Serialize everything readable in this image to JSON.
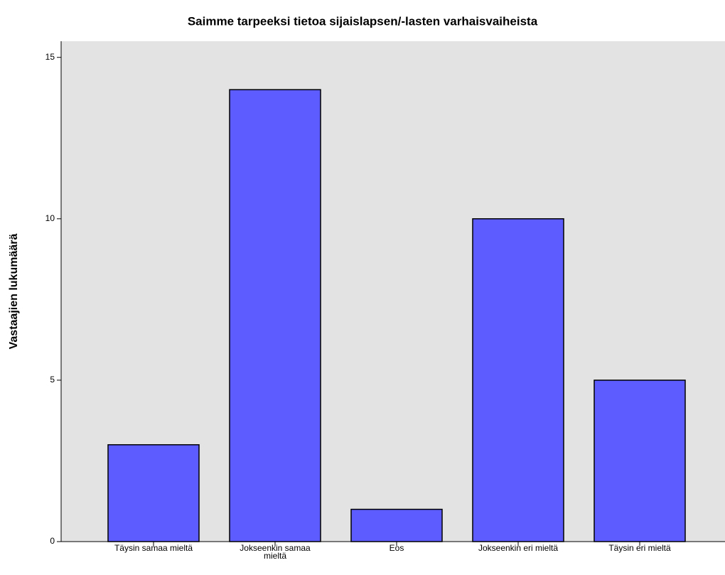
{
  "chart_data": {
    "type": "bar",
    "title": "Saimme tarpeeksi tietoa sijaislapsen/-lasten varhaisvaiheista",
    "ylabel": "Vastaajien lukumäärä",
    "categories": [
      "Täysin samaa mieltä",
      "Jokseenkin samaa mieltä",
      "Eos",
      "Jokseenkin eri mieltä",
      "Täysin eri mieltä"
    ],
    "values": [
      3,
      14,
      1,
      10,
      5
    ],
    "color": "#5c5cff",
    "ylim": [
      0,
      15.5
    ],
    "yticks": [
      0,
      5,
      10,
      15
    ],
    "grid": false
  }
}
